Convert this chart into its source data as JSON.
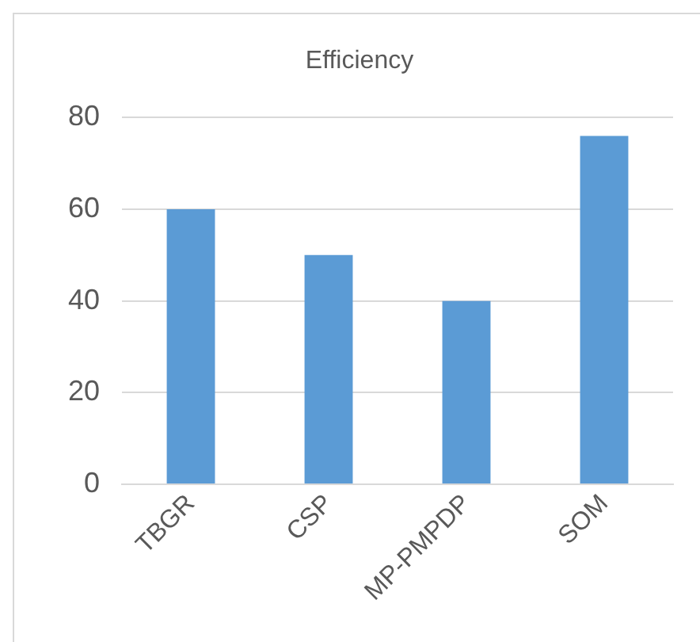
{
  "chart_data": {
    "type": "bar",
    "title": "Efficiency",
    "categories": [
      "TBGR",
      "CSP",
      "MP-PMPDP",
      "SOM"
    ],
    "values": [
      60,
      50,
      40,
      76
    ],
    "color": "#5b9bd5",
    "ylim": [
      0,
      80
    ],
    "yticks": [
      0,
      20,
      40,
      60,
      80
    ],
    "grid": "y"
  }
}
